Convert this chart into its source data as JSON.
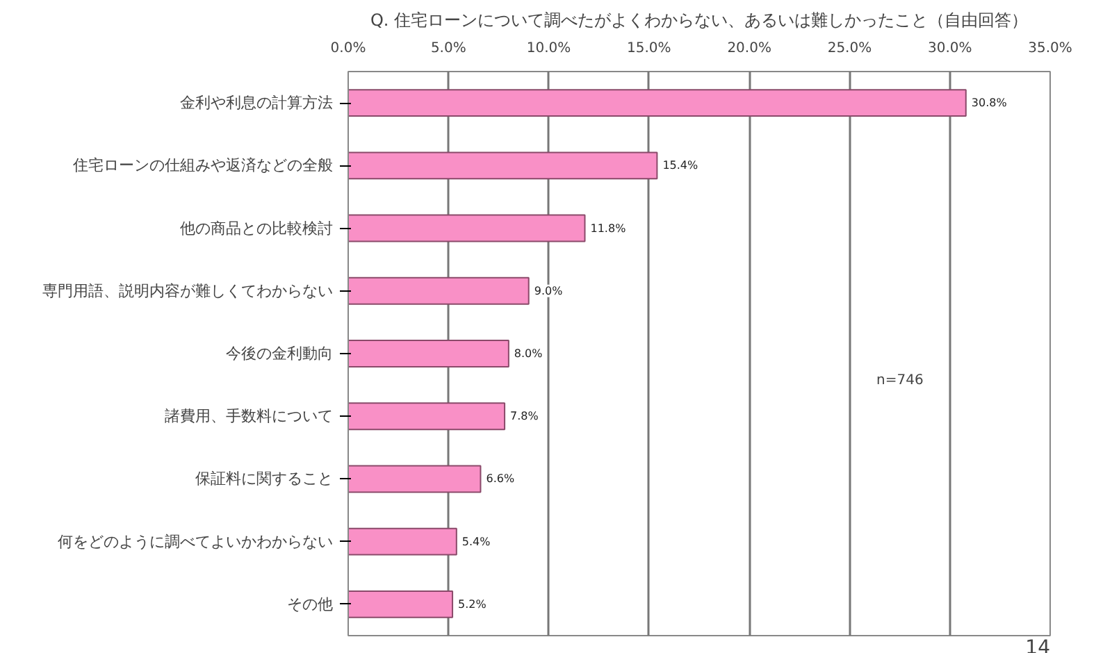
{
  "chart_data": {
    "type": "bar",
    "orientation": "horizontal",
    "title": "Q. 住宅ローンについて調べたがよくわからない、あるいは難しかったこと（自由回答）",
    "categories": [
      "金利や利息の計算方法",
      "住宅ローンの仕組みや返済などの全般",
      "他の商品との比較検討",
      "専門用語、説明内容が難しくてわからない",
      "今後の金利動向",
      "諸費用、手数料について",
      "保証料に関すること",
      "何をどのように調べてよいかわからない",
      "その他"
    ],
    "values": [
      30.8,
      15.4,
      11.8,
      9.0,
      8.0,
      7.8,
      6.6,
      5.4,
      5.2
    ],
    "value_labels": [
      "30.8%",
      "15.4%",
      "11.8%",
      "9.0%",
      "8.0%",
      "7.8%",
      "6.6%",
      "5.4%",
      "5.2%"
    ],
    "color": "#f990c6",
    "xlim": [
      0,
      35
    ],
    "xticks": [
      {
        "value": 0,
        "label": "0.0%"
      },
      {
        "value": 5,
        "label": "5.0%"
      },
      {
        "value": 10,
        "label": "10.0%"
      },
      {
        "value": 15,
        "label": "15.0%"
      },
      {
        "value": 20,
        "label": "20.0%"
      },
      {
        "value": 25,
        "label": "25.0%"
      },
      {
        "value": 30,
        "label": "30.0%"
      },
      {
        "value": 35,
        "label": "35.0%"
      }
    ],
    "grid": "x",
    "annotations": [
      "n=746",
      "14"
    ]
  }
}
